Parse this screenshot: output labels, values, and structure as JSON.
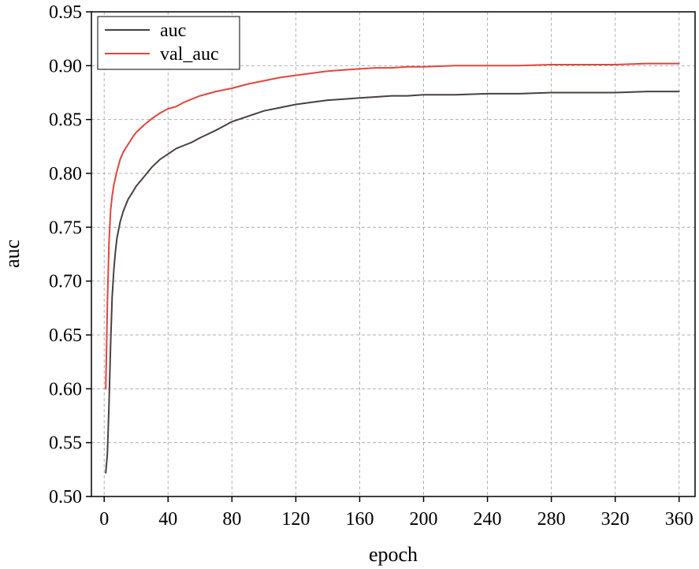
{
  "chart_data": {
    "type": "line",
    "title": "",
    "xlabel": "epoch",
    "ylabel": "auc",
    "xlim": [
      -8,
      370
    ],
    "ylim": [
      0.5,
      0.95
    ],
    "xticks": [
      0,
      40,
      80,
      120,
      160,
      200,
      240,
      280,
      320,
      360
    ],
    "yticks": [
      0.5,
      0.55,
      0.6,
      0.65,
      0.7,
      0.75,
      0.8,
      0.85,
      0.9,
      0.95
    ],
    "xtick_labels": [
      "0",
      "40",
      "80",
      "120",
      "160",
      "200",
      "240",
      "280",
      "320",
      "360"
    ],
    "ytick_labels": [
      "0.50",
      "0.55",
      "0.60",
      "0.65",
      "0.70",
      "0.75",
      "0.80",
      "0.85",
      "0.90",
      "0.95"
    ],
    "grid": true,
    "legend_position": "top-left",
    "series": [
      {
        "name": "auc",
        "color": "#4a4040",
        "x": [
          1,
          2,
          3,
          4,
          5,
          6,
          7,
          8,
          10,
          12,
          15,
          18,
          20,
          25,
          30,
          35,
          40,
          45,
          50,
          55,
          60,
          70,
          80,
          90,
          100,
          110,
          120,
          130,
          140,
          150,
          160,
          170,
          180,
          190,
          200,
          220,
          240,
          260,
          280,
          300,
          320,
          340,
          360
        ],
        "values": [
          0.522,
          0.54,
          0.585,
          0.64,
          0.685,
          0.71,
          0.727,
          0.74,
          0.755,
          0.765,
          0.776,
          0.783,
          0.788,
          0.797,
          0.806,
          0.813,
          0.818,
          0.823,
          0.826,
          0.829,
          0.833,
          0.84,
          0.848,
          0.853,
          0.858,
          0.861,
          0.864,
          0.866,
          0.868,
          0.869,
          0.87,
          0.871,
          0.872,
          0.872,
          0.873,
          0.873,
          0.874,
          0.874,
          0.875,
          0.875,
          0.875,
          0.876,
          0.876
        ]
      },
      {
        "name": "val_auc",
        "color": "#e0463e",
        "x": [
          1,
          2,
          3,
          4,
          5,
          6,
          8,
          10,
          12,
          15,
          18,
          20,
          25,
          30,
          35,
          40,
          45,
          50,
          55,
          60,
          70,
          80,
          90,
          100,
          110,
          120,
          130,
          140,
          150,
          160,
          170,
          180,
          190,
          200,
          220,
          240,
          260,
          280,
          300,
          320,
          340,
          360
        ],
        "values": [
          0.6,
          0.68,
          0.735,
          0.765,
          0.779,
          0.789,
          0.802,
          0.813,
          0.82,
          0.827,
          0.834,
          0.838,
          0.845,
          0.851,
          0.856,
          0.86,
          0.862,
          0.866,
          0.869,
          0.872,
          0.876,
          0.879,
          0.883,
          0.886,
          0.889,
          0.891,
          0.893,
          0.895,
          0.896,
          0.897,
          0.898,
          0.898,
          0.899,
          0.899,
          0.9,
          0.9,
          0.9,
          0.901,
          0.901,
          0.901,
          0.902,
          0.902
        ]
      }
    ]
  }
}
